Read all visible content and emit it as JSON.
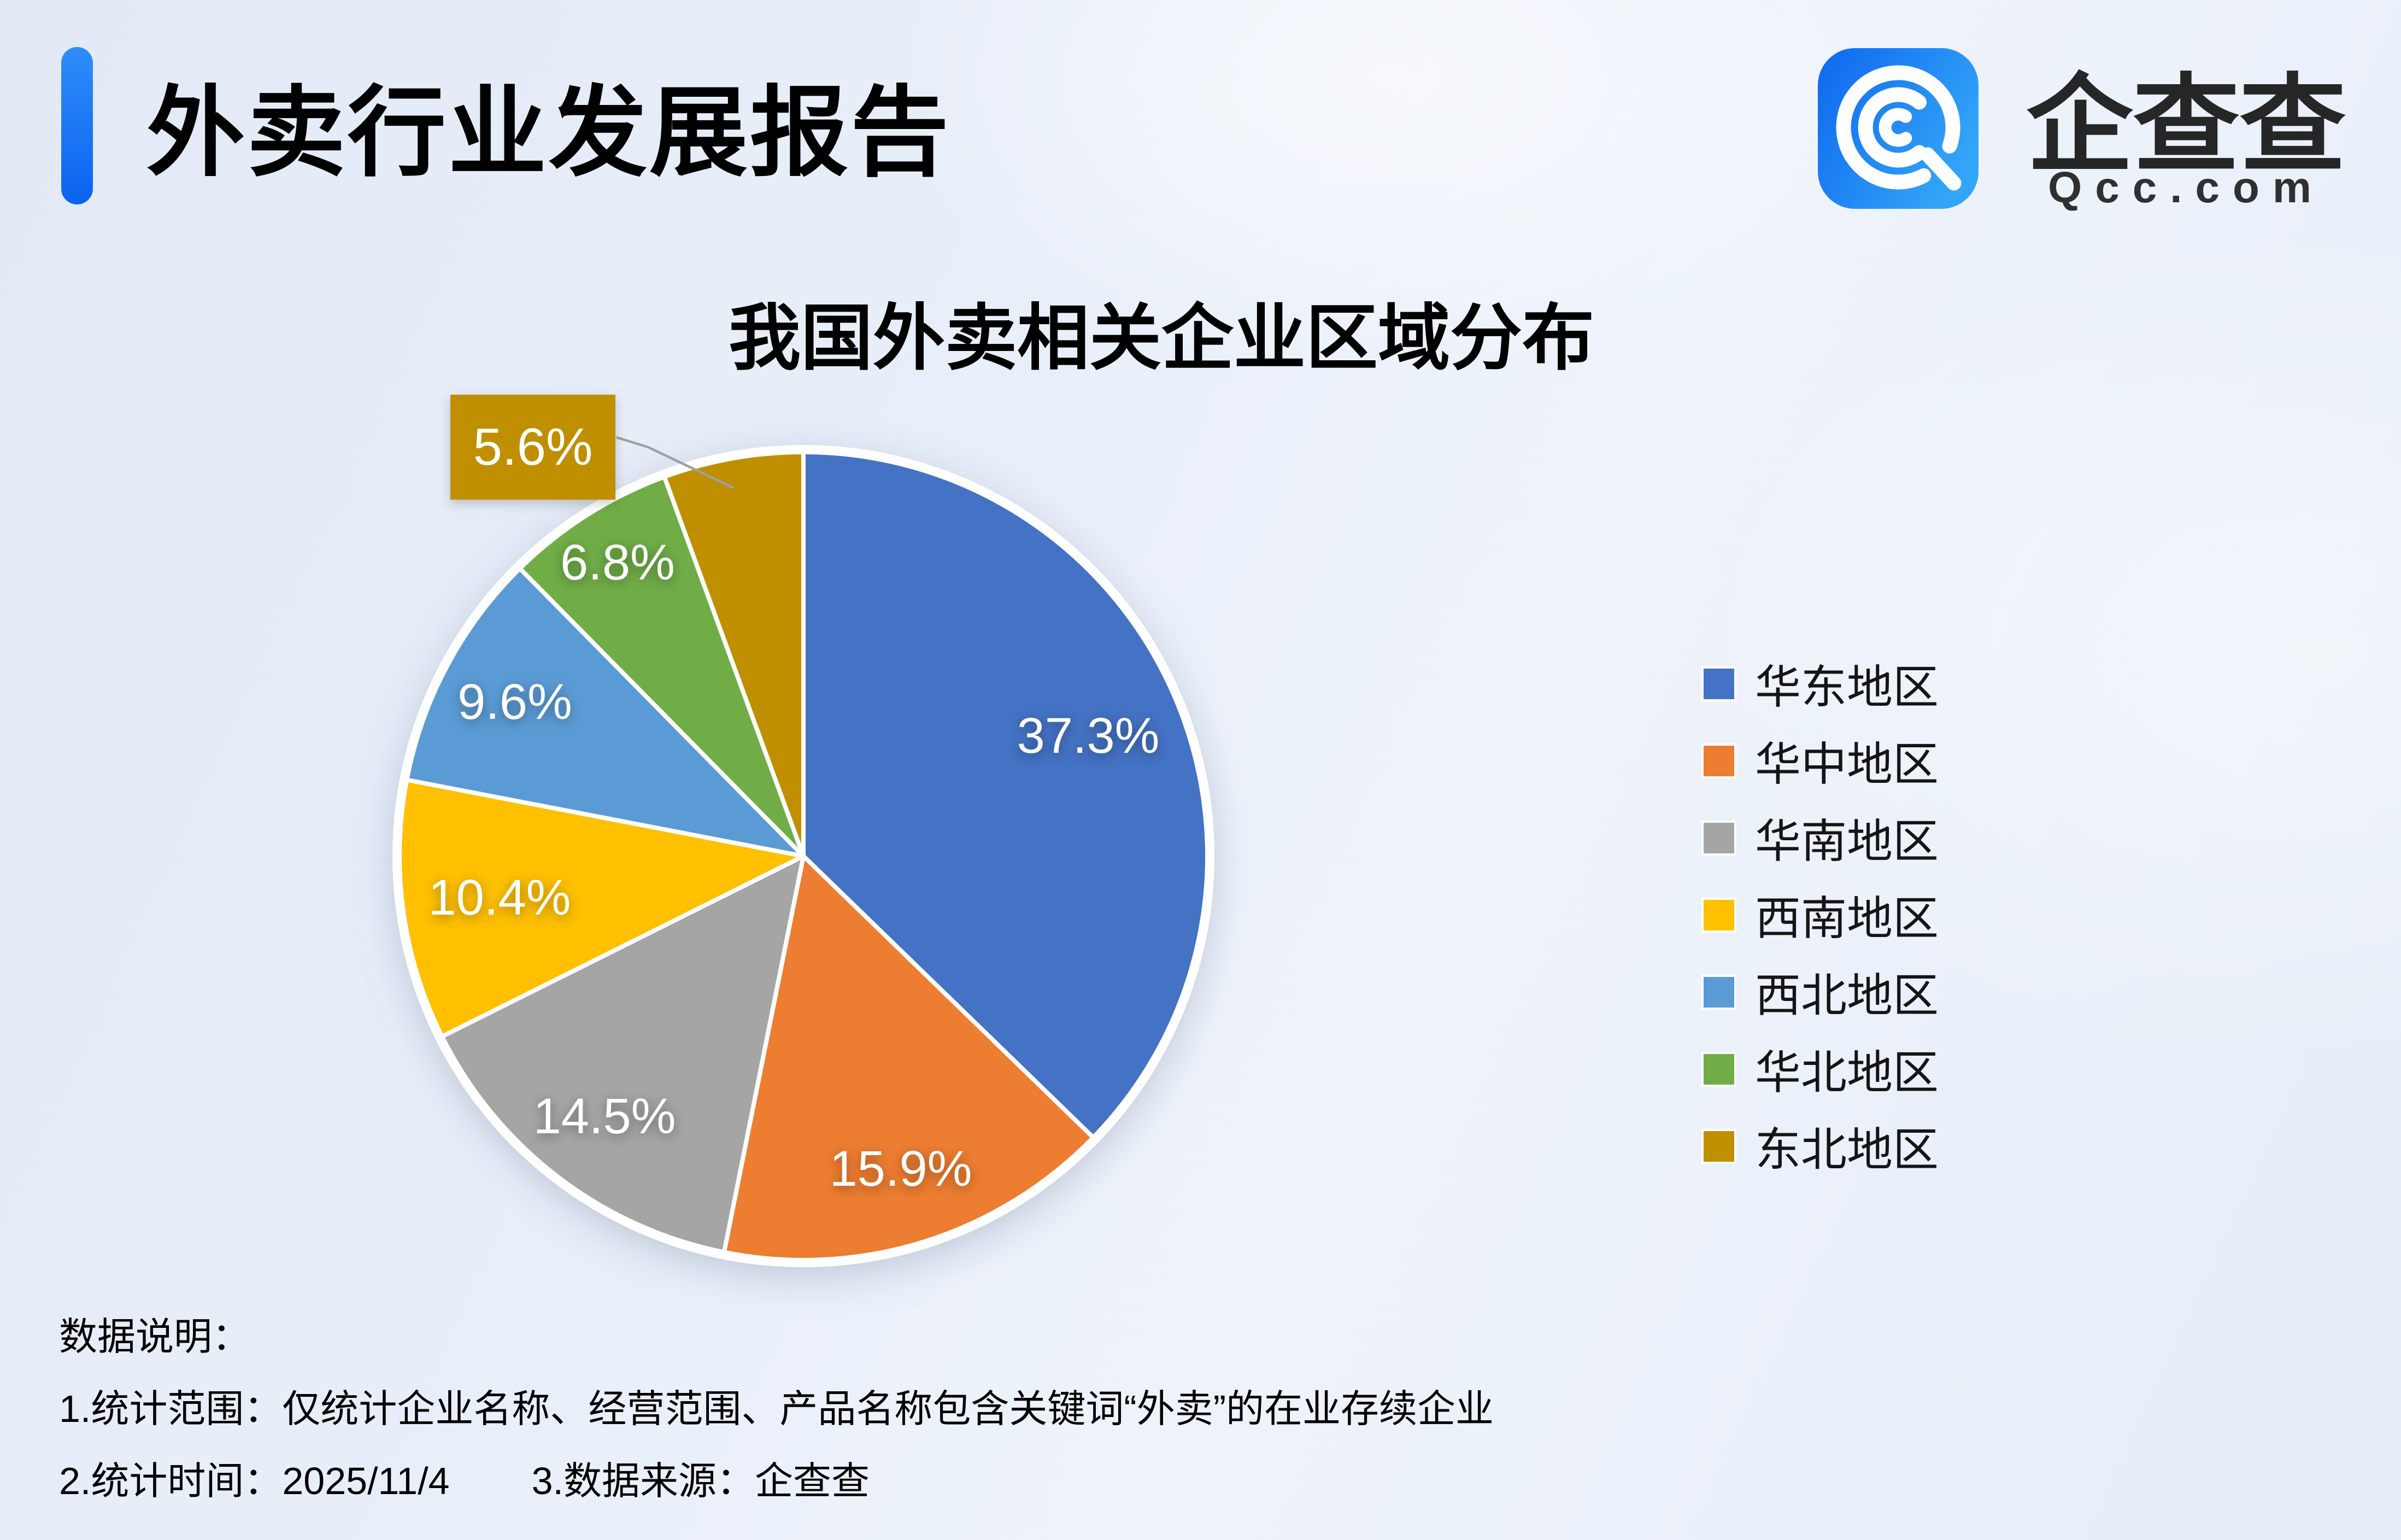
{
  "page": {
    "report_title": "外卖行业发展报告",
    "logo": {
      "brand": "企查查",
      "domain": "Qcc.com"
    },
    "notes": {
      "heading": "数据说明：",
      "line1": "1.统计范围：仅统计企业名称、经营范围、产品名称包含关键词“外卖”的在业存续企业",
      "line2_left": "2.统计时间：2025/11/4",
      "line2_right": "3.数据来源：企查查"
    }
  },
  "chart_data": {
    "type": "pie",
    "title": "我国外卖相关企业区域分布",
    "categories": [
      "华东地区",
      "华中地区",
      "华南地区",
      "西南地区",
      "西北地区",
      "华北地区",
      "东北地区"
    ],
    "values": [
      37.3,
      15.9,
      14.5,
      10.4,
      9.6,
      6.8,
      5.6
    ],
    "labels": [
      "37.3%",
      "15.9%",
      "14.5%",
      "10.4%",
      "9.6%",
      "6.8%",
      "5.6%"
    ],
    "colors": [
      "#4472C4",
      "#ED7D31",
      "#A5A5A5",
      "#FFC000",
      "#5B9BD5",
      "#70AD47",
      "#BF8F00"
    ],
    "unit": "%",
    "start_angle_deg": 0,
    "direction": "clockwise",
    "legend_position": "right",
    "callout": {
      "index": 6,
      "label": "5.6%"
    },
    "leader_line_color": "#A0A0A0",
    "background_accent": "#E9EFF9"
  }
}
